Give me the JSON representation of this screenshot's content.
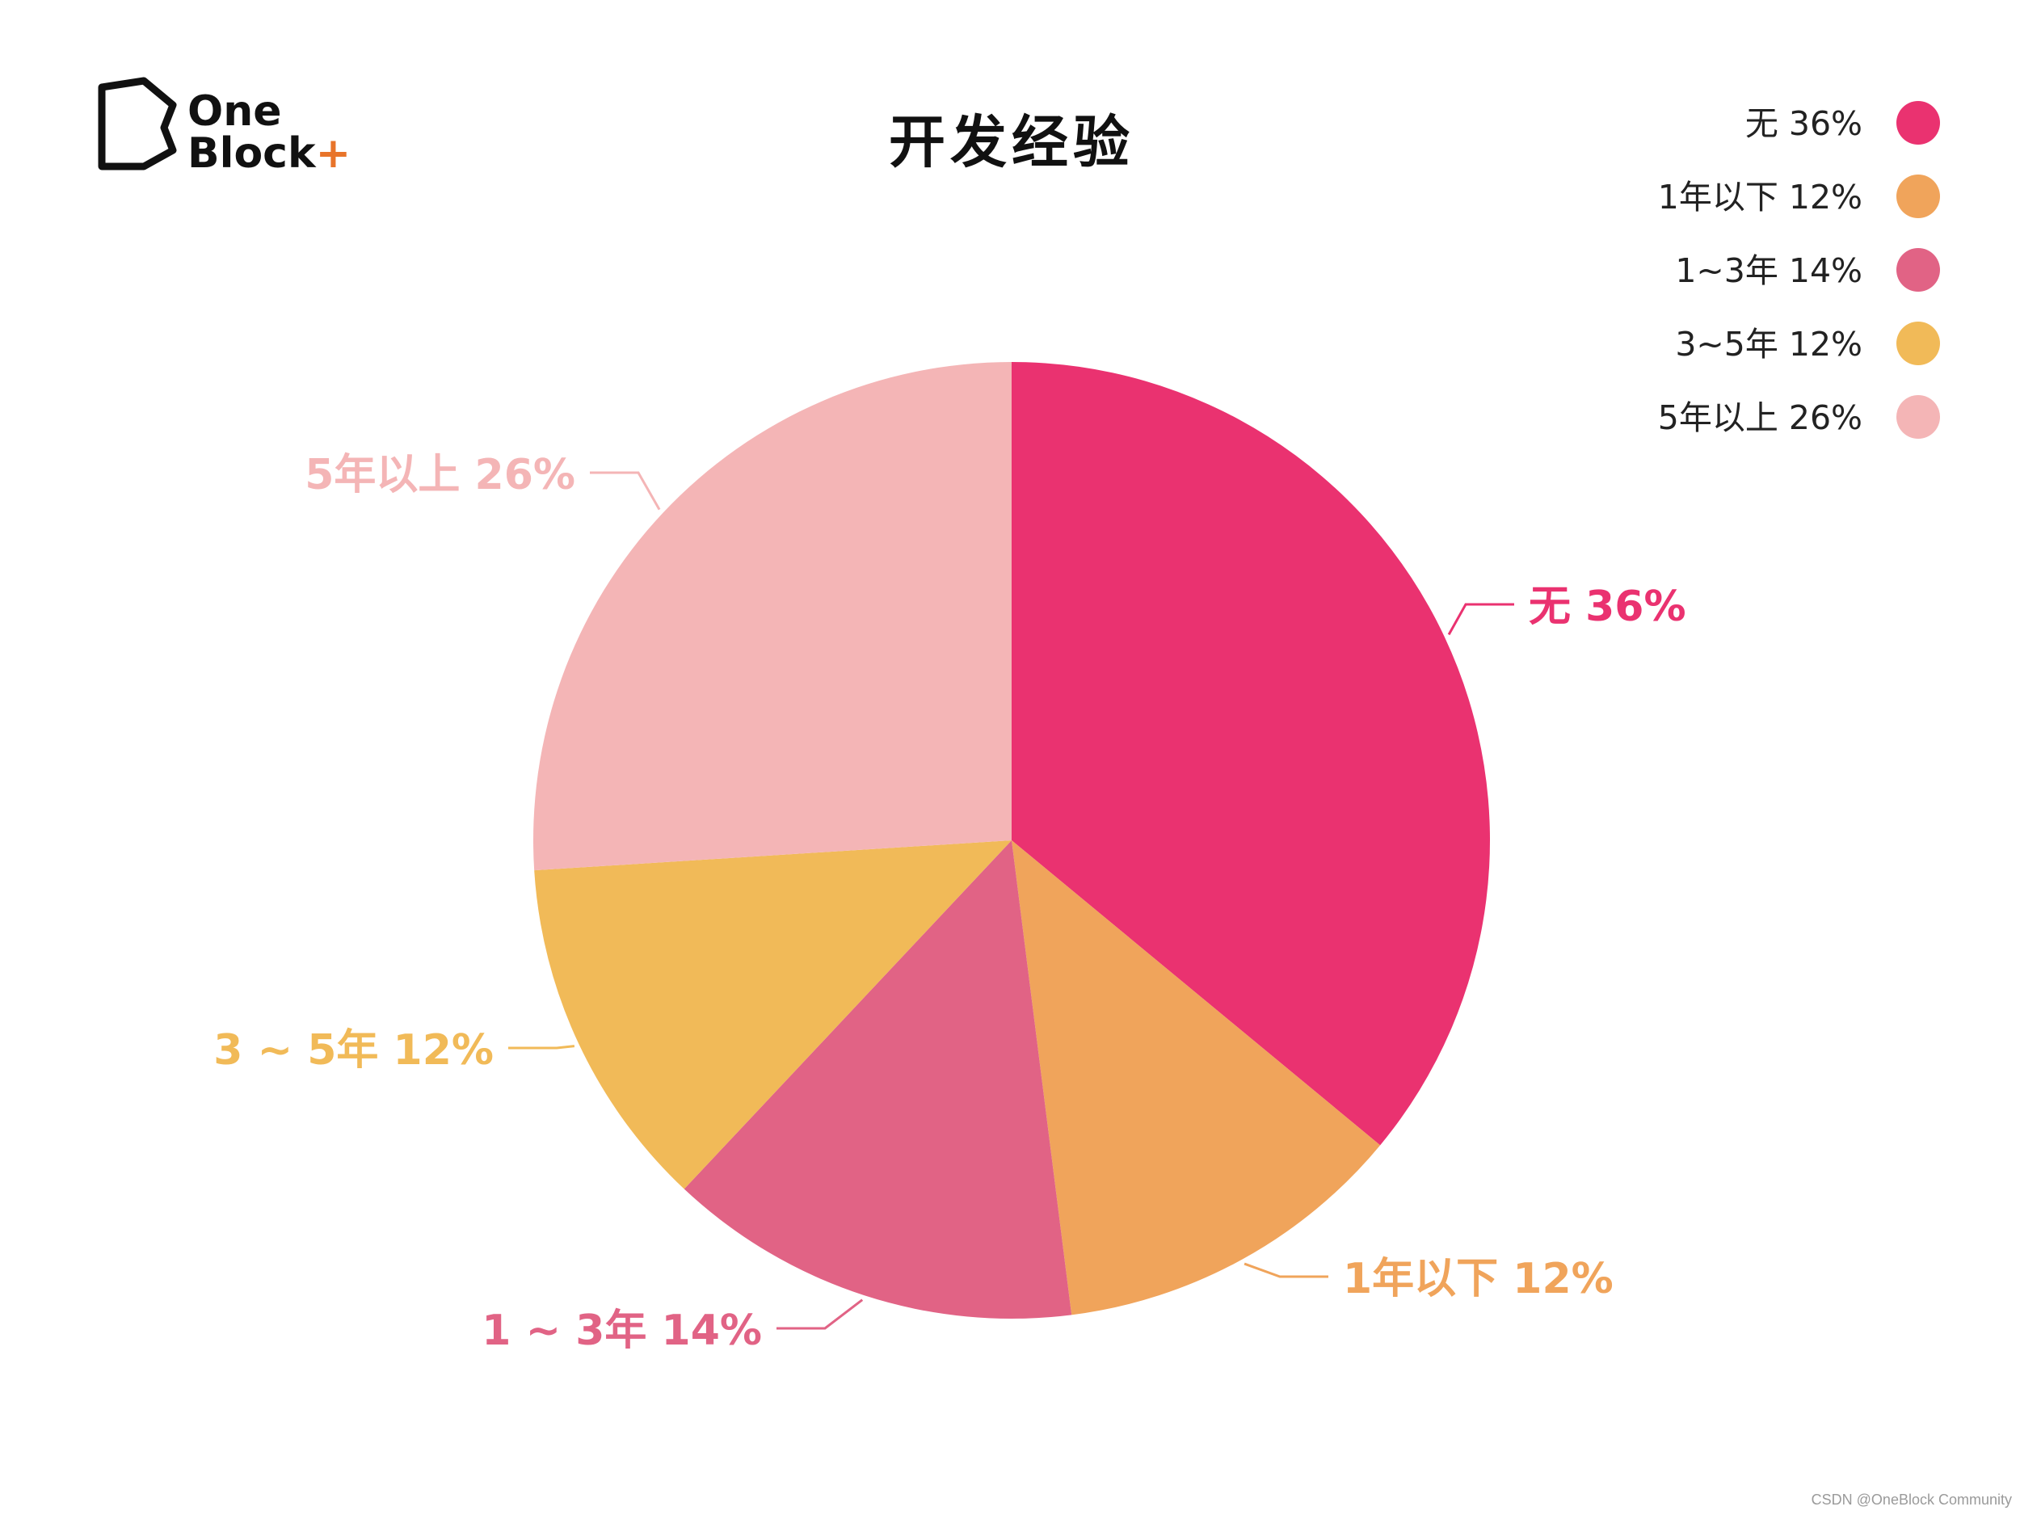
{
  "brand": {
    "logo_line1": "One",
    "logo_line2": "Block",
    "logo_plus": "+",
    "logo_plus_color": "#e8742a"
  },
  "watermark": "CSDN @OneBlock Community",
  "chart_data": {
    "type": "pie",
    "title": "开发经验",
    "start_angle_deg": 0,
    "direction": "clockwise",
    "legend_position": "top-right",
    "slices": [
      {
        "label": "无",
        "value": 36,
        "display": "36%",
        "callout": "无 36%",
        "legend": "无 36%",
        "color": "#ea3270"
      },
      {
        "label": "1年以下",
        "value": 12,
        "display": "12%",
        "callout": "1年以下 12%",
        "legend": "1年以下 12%",
        "color": "#f0a45b"
      },
      {
        "label": "1~3年",
        "value": 14,
        "display": "14%",
        "callout": "1 ~ 3年 14%",
        "legend": "1~3年 14%",
        "color": "#e16385"
      },
      {
        "label": "3~5年",
        "value": 12,
        "display": "12%",
        "callout": "3 ~ 5年 12%",
        "legend": "3~5年 12%",
        "color": "#f1ba58"
      },
      {
        "label": "5年以上",
        "value": 26,
        "display": "26%",
        "callout": "5年以上 26%",
        "legend": "5年以上 26%",
        "color": "#f4b5b6"
      }
    ]
  }
}
